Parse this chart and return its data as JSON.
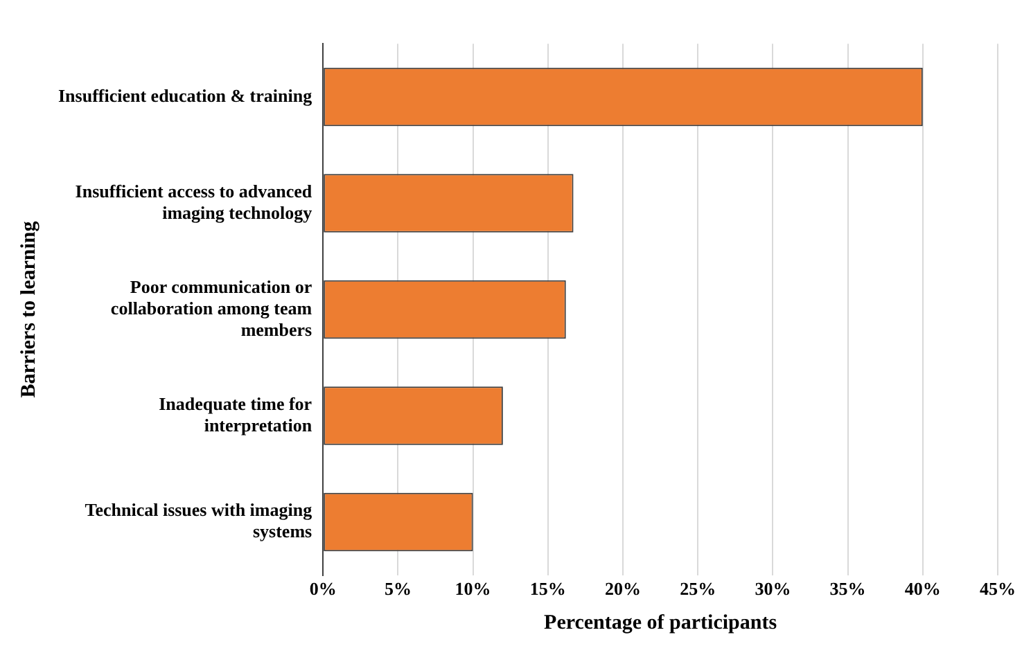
{
  "chart_data": {
    "type": "bar",
    "orientation": "horizontal",
    "xlabel": "Percentage of participants",
    "ylabel": "Barriers to learning",
    "categories": [
      "Insufficient education & training",
      "Insufficient access to advanced imaging technology",
      "Poor communication or collaboration among team members",
      "Inadequate time for interpretation",
      "Technical issues with imaging systems"
    ],
    "values": [
      40,
      16.7,
      16.2,
      12,
      10
    ],
    "color": "#ed7d31",
    "xlim": [
      0,
      45
    ],
    "xticks": [
      {
        "value": 0,
        "label": "0%"
      },
      {
        "value": 5,
        "label": "5%"
      },
      {
        "value": 10,
        "label": "10%"
      },
      {
        "value": 15,
        "label": "15%"
      },
      {
        "value": 20,
        "label": "20%"
      },
      {
        "value": 25,
        "label": "25%"
      },
      {
        "value": 30,
        "label": "30%"
      },
      {
        "value": 35,
        "label": "35%"
      },
      {
        "value": 40,
        "label": "40%"
      },
      {
        "value": 45,
        "label": "45%"
      }
    ],
    "grid": "x",
    "legend": false
  }
}
